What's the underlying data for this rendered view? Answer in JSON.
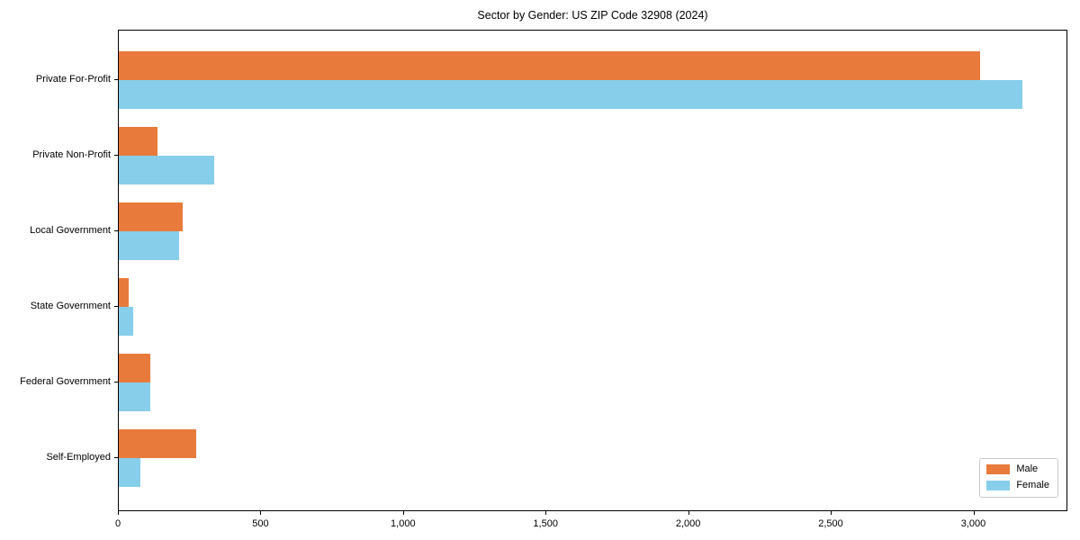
{
  "chart_data": {
    "type": "bar",
    "orientation": "horizontal",
    "title": "Sector by Gender: US ZIP Code 32908 (2024)",
    "categories": [
      "Private For-Profit",
      "Private Non-Profit",
      "Local Government",
      "State Government",
      "Federal Government",
      "Self-Employed"
    ],
    "series": [
      {
        "name": "Male",
        "color": "#E87A3C",
        "values": [
          3020,
          135,
          225,
          35,
          110,
          270
        ]
      },
      {
        "name": "Female",
        "color": "#87CEEB",
        "values": [
          3170,
          335,
          210,
          50,
          110,
          75
        ]
      }
    ],
    "xlim": [
      0,
      3330
    ],
    "xticks": [
      0,
      500,
      1000,
      1500,
      2000,
      2500,
      3000
    ],
    "xtick_labels": [
      "0",
      "500",
      "1,000",
      "1,500",
      "2,000",
      "2,500",
      "3,000"
    ],
    "xlabel": "",
    "ylabel": "",
    "grid": false,
    "legend_position": "lower right",
    "axis_color": "#000000",
    "background_color": "#ffffff"
  }
}
